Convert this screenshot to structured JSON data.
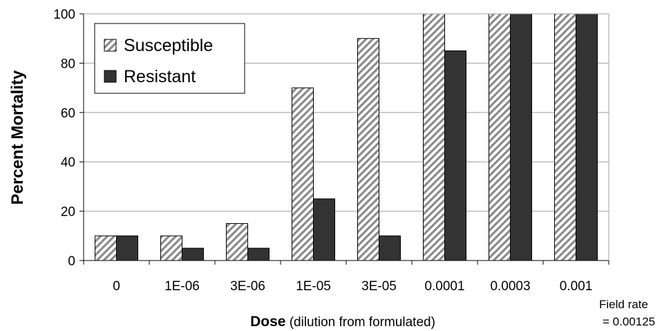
{
  "chart_data": {
    "type": "bar",
    "categories": [
      "0",
      "1E-06",
      "3E-06",
      "1E-05",
      "3E-05",
      "0.0001",
      "0.0003",
      "0.001"
    ],
    "series": [
      {
        "name": "Susceptible",
        "values": [
          10,
          10,
          15,
          70,
          90,
          100,
          100,
          100
        ],
        "pattern": "diagonal-hatch"
      },
      {
        "name": "Resistant",
        "values": [
          10,
          5,
          5,
          25,
          10,
          85,
          100,
          100
        ],
        "color": "#333333"
      }
    ],
    "title": "",
    "xlabel": {
      "bold": "Dose",
      "normal": " (dilution from formulated)"
    },
    "ylabel": "Percent Mortality",
    "ylim": [
      0,
      100
    ],
    "yticks": [
      0,
      20,
      40,
      60,
      80,
      100
    ],
    "grid": true,
    "legend_position": "top-left",
    "annotation": [
      "Field rate",
      "= 0.00125"
    ]
  }
}
